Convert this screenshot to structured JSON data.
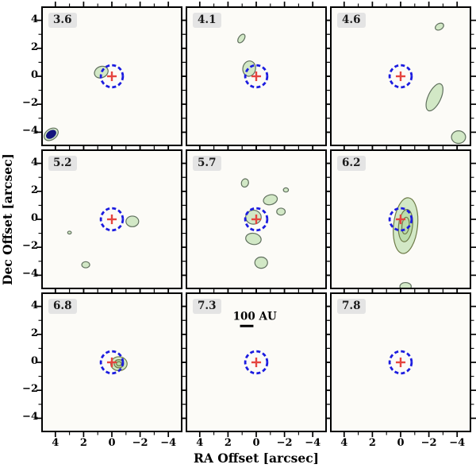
{
  "chart_data": {
    "type": "contour-map",
    "title": "",
    "xlabel": "RA Offset [arcsec]",
    "ylabel": "Dec Offset [arcsec]",
    "x_range_arcsec": [
      5,
      -5
    ],
    "y_range_arcsec": [
      -5,
      5
    ],
    "x_ticks": [
      4,
      2,
      0,
      -2,
      -4
    ],
    "y_ticks": [
      4,
      2,
      0,
      -2,
      -4
    ],
    "x_tick_labels": [
      "4",
      "2",
      "0",
      "−2",
      "−4"
    ],
    "y_tick_labels": [
      "4",
      "2",
      "0",
      "−2",
      "−4"
    ],
    "ticks_major": [
      4,
      2,
      0,
      -2,
      -4
    ],
    "ticks_minor": [
      3,
      1,
      -1,
      -3
    ],
    "grid": "off",
    "legend": "none",
    "marker": {
      "x": 0,
      "y": 0,
      "circle_radius_arcsec": 0.78,
      "cross_half_arcsec": 0.34,
      "circle_color": "#1c1ce0",
      "cross_color": "#e5453f"
    },
    "colors": {
      "panel_bg": "#fcfbf7",
      "blob_fill": "#d2e8c6",
      "blob_fill_inner": "#bcdcab",
      "blob_edge": "#60705e",
      "beam_fill": "#14147d",
      "label_chip_bg": "#e4e4e4"
    },
    "panels": [
      {
        "label": "3.6",
        "row": 0,
        "col": 0,
        "blobs": [
          {
            "x": 0.75,
            "y": 0.3,
            "rx": 0.5,
            "ry": 0.4,
            "rot": -25,
            "levels": 1
          },
          {
            "x": 4.3,
            "y": -4.15,
            "rx": 0.55,
            "ry": 0.38,
            "rot": -35,
            "levels": 1,
            "type": "beam"
          }
        ]
      },
      {
        "label": "4.1",
        "row": 0,
        "col": 1,
        "blobs": [
          {
            "x": 0.5,
            "y": 0.55,
            "rx": 0.45,
            "ry": 0.55,
            "rot": 10,
            "levels": 1
          },
          {
            "x": 1.05,
            "y": 2.7,
            "rx": 0.2,
            "ry": 0.35,
            "rot": 35,
            "levels": 1
          }
        ]
      },
      {
        "label": "4.6",
        "row": 0,
        "col": 2,
        "blobs": [
          {
            "x": -2.75,
            "y": 3.55,
            "rx": 0.32,
            "ry": 0.22,
            "rot": -30,
            "levels": 1
          },
          {
            "x": -2.4,
            "y": -1.5,
            "rx": 0.45,
            "ry": 1.05,
            "rot": 25,
            "levels": 1
          },
          {
            "x": -4.1,
            "y": -4.35,
            "rx": 0.5,
            "ry": 0.45,
            "rot": 0,
            "levels": 1
          }
        ]
      },
      {
        "label": "5.2",
        "row": 1,
        "col": 0,
        "blobs": [
          {
            "x": -1.45,
            "y": -0.15,
            "rx": 0.45,
            "ry": 0.38,
            "rot": 0,
            "levels": 1
          },
          {
            "x": 1.85,
            "y": -3.25,
            "rx": 0.28,
            "ry": 0.22,
            "rot": 0,
            "levels": 1
          },
          {
            "x": 3.0,
            "y": -0.95,
            "rx": 0.13,
            "ry": 0.1,
            "rot": 0,
            "levels": 1
          }
        ]
      },
      {
        "label": "5.7",
        "row": 1,
        "col": 1,
        "blobs": [
          {
            "x": 0.2,
            "y": 0.15,
            "rx": 0.55,
            "ry": 0.5,
            "rot": 0,
            "levels": 1
          },
          {
            "x": 0.8,
            "y": 2.6,
            "rx": 0.25,
            "ry": 0.3,
            "rot": 20,
            "levels": 1
          },
          {
            "x": -1.0,
            "y": 1.4,
            "rx": 0.5,
            "ry": 0.35,
            "rot": -15,
            "levels": 1
          },
          {
            "x": -1.75,
            "y": 0.55,
            "rx": 0.3,
            "ry": 0.25,
            "rot": 0,
            "levels": 1
          },
          {
            "x": -2.1,
            "y": 2.1,
            "rx": 0.18,
            "ry": 0.15,
            "rot": 0,
            "levels": 1
          },
          {
            "x": 0.2,
            "y": -1.4,
            "rx": 0.55,
            "ry": 0.4,
            "rot": 10,
            "levels": 1
          },
          {
            "x": -0.35,
            "y": -3.1,
            "rx": 0.45,
            "ry": 0.4,
            "rot": 0,
            "levels": 1
          }
        ]
      },
      {
        "label": "6.2",
        "row": 1,
        "col": 2,
        "blobs": [
          {
            "x": -0.35,
            "y": -0.45,
            "rx": 0.85,
            "ry": 2.0,
            "rot": 6,
            "levels": 3,
            "edge": "#6f7c49"
          },
          {
            "x": -0.35,
            "y": -4.8,
            "rx": 0.4,
            "ry": 0.28,
            "rot": 0,
            "levels": 1
          }
        ]
      },
      {
        "label": "6.8",
        "row": 2,
        "col": 0,
        "blobs": [
          {
            "x": -0.5,
            "y": -0.1,
            "rx": 0.58,
            "ry": 0.5,
            "rot": 0,
            "levels": 3,
            "edge": "#6f7c49"
          }
        ]
      },
      {
        "label": "7.3",
        "row": 2,
        "col": 1,
        "blobs": [],
        "scalebar": {
          "text": "100 AU",
          "text_x": 0.1,
          "text_y": 3.05,
          "bar_x1": 1.15,
          "bar_x2": 0.2,
          "bar_y": 2.6
        }
      },
      {
        "label": "7.8",
        "row": 2,
        "col": 2,
        "blobs": []
      }
    ]
  }
}
